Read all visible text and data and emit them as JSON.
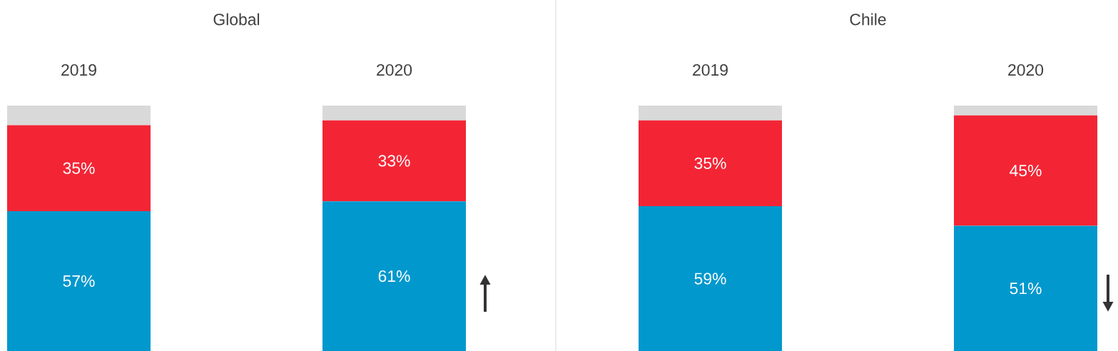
{
  "chart_data": [
    {
      "type": "bar",
      "stacked": true,
      "title": "Global",
      "categories": [
        "2019",
        "2020"
      ],
      "series": [
        {
          "color": "#0098cd",
          "values": [
            57,
            61
          ],
          "value_labels": [
            "57%",
            "61%"
          ]
        },
        {
          "color": "#f32535",
          "values": [
            35,
            33
          ],
          "value_labels": [
            "35%",
            "33%"
          ]
        },
        {
          "color": "#d9d9d9",
          "values": [
            8,
            6
          ]
        }
      ]
    },
    {
      "type": "bar",
      "stacked": true,
      "title": "Chile",
      "categories": [
        "2019",
        "2020"
      ],
      "series": [
        {
          "color": "#0098cd",
          "values": [
            59,
            51
          ],
          "value_labels": [
            "59%",
            "51%"
          ]
        },
        {
          "color": "#f32535",
          "values": [
            35,
            45
          ],
          "value_labels": [
            "35%",
            "45%"
          ]
        },
        {
          "color": "#d9d9d9",
          "values": [
            6,
            4
          ]
        }
      ]
    }
  ]
}
